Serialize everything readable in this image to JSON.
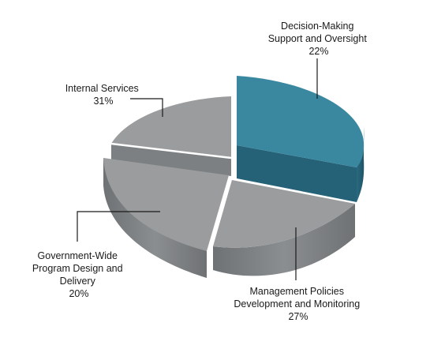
{
  "chart_data": {
    "type": "pie",
    "title": "",
    "slices": [
      {
        "label_lines": [
          "Decision-Making",
          "Support and Oversight"
        ],
        "value": 22,
        "display": "22%",
        "color": "#3a88a0"
      },
      {
        "label_lines": [
          "Management Policies",
          "Development and Monitoring"
        ],
        "value": 27,
        "display": "27%",
        "color": "#9a9c9e"
      },
      {
        "label_lines": [
          "Government-Wide",
          "Program Design and",
          "Delivery"
        ],
        "value": 20,
        "display": "20%",
        "color": "#9a9c9e"
      },
      {
        "label_lines": [
          "Internal Services"
        ],
        "value": 31,
        "display": "31%",
        "color": "#9a9c9e"
      }
    ],
    "style": "3d-exploded",
    "legend": "none (leader-line labels)"
  }
}
